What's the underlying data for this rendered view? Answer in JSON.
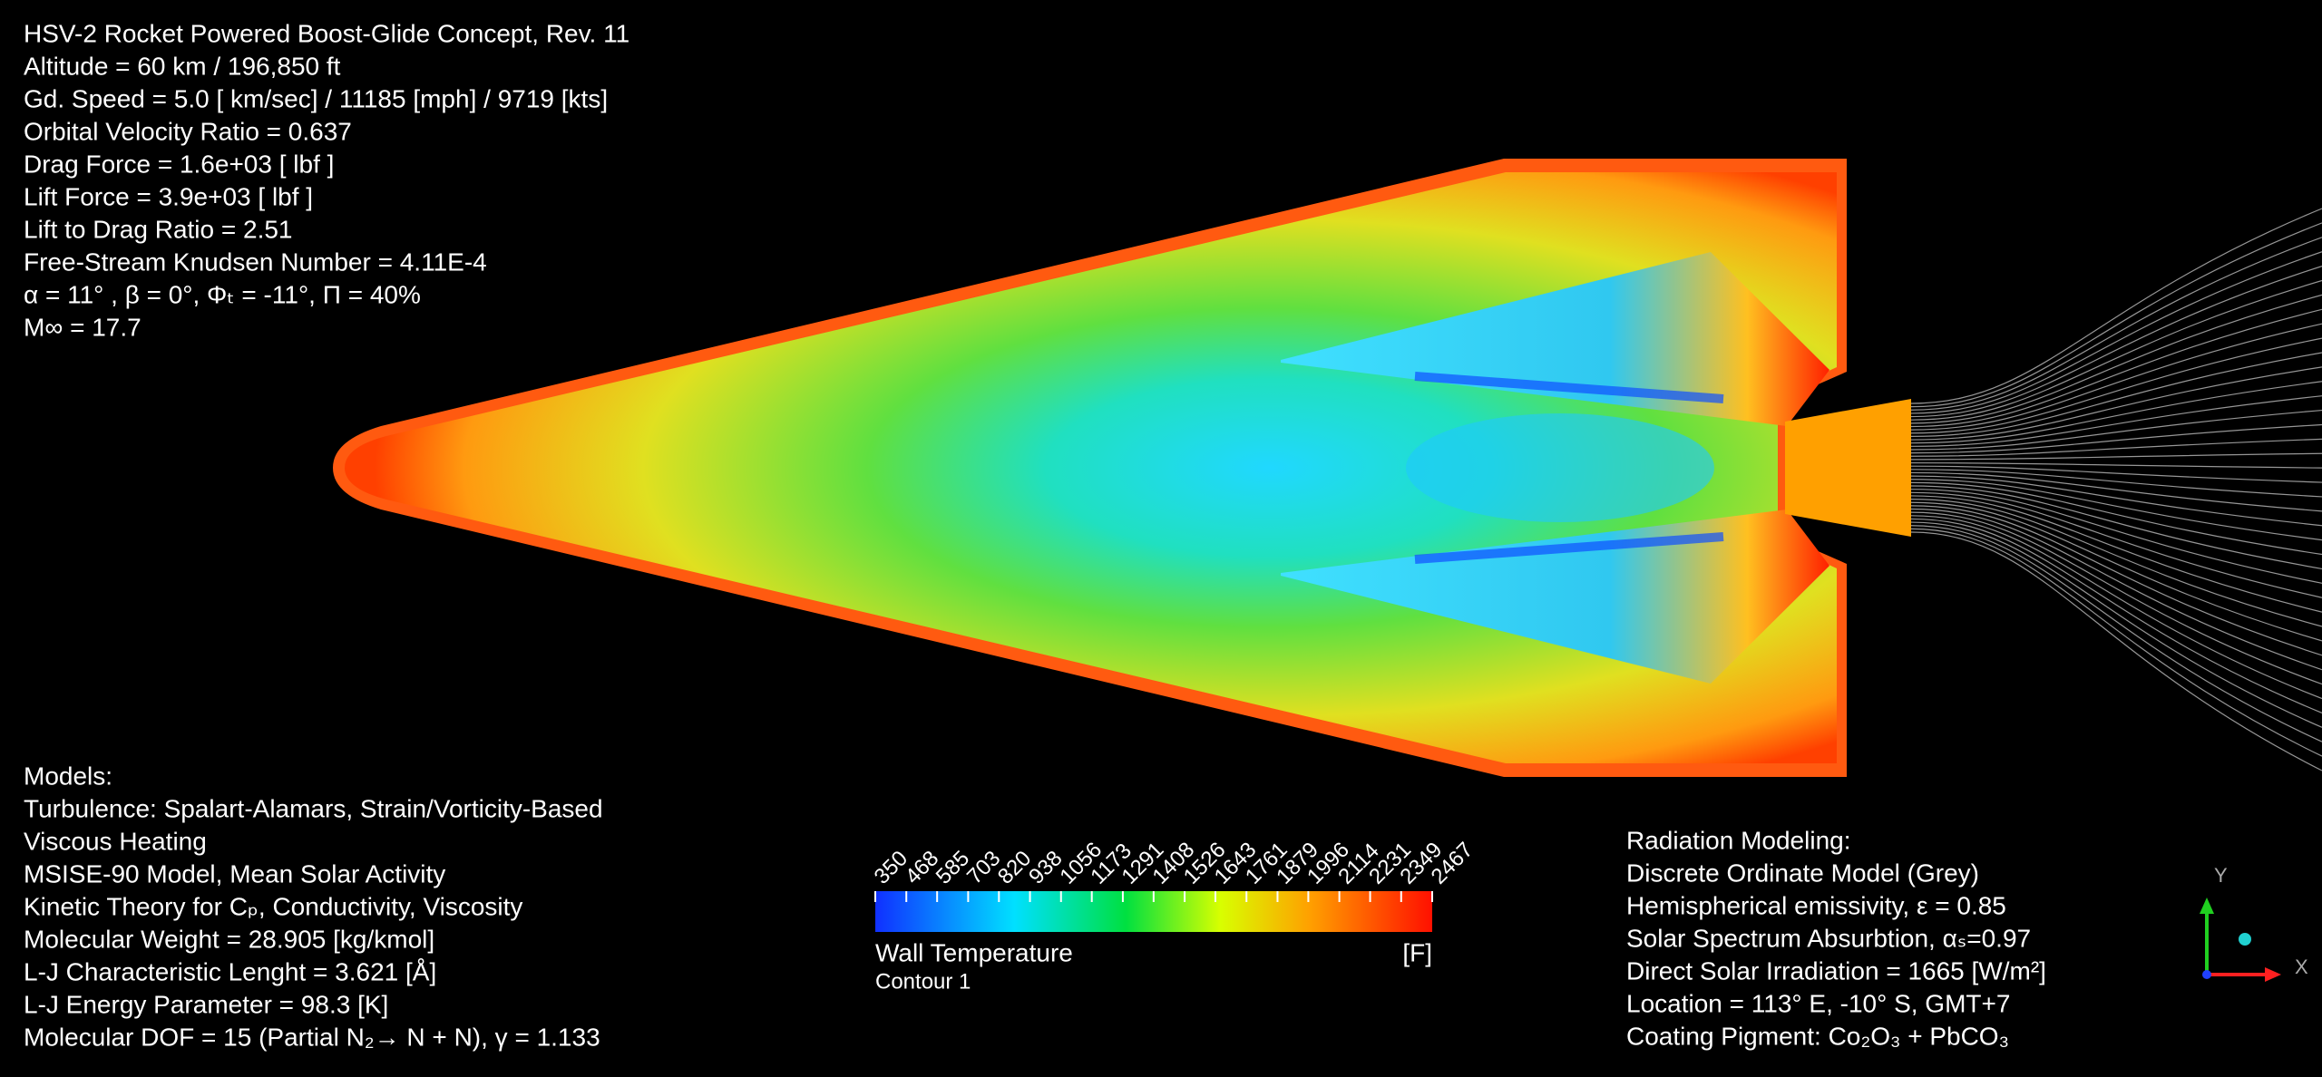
{
  "header": {
    "lines": [
      "HSV-2 Rocket Powered Boost-Glide Concept, Rev. 11",
      "Altitude = 60 km / 196,850 ft",
      "Gd. Speed = 5.0 [ km/sec] / 11185 [mph] / 9719 [kts]",
      "Orbital Velocity Ratio = 0.637",
      "Drag Force = 1.6e+03 [ lbf ]",
      "Lift Force = 3.9e+03 [ lbf ]",
      "Lift to Drag Ratio = 2.51",
      "Free-Stream Knudsen Number = 4.11E-4",
      "α = 11° , β = 0°, Φₜ = -11°, Π = 40%",
      "M∞ = 17.7"
    ]
  },
  "models": {
    "lines": [
      "Models:",
      "Turbulence: Spalart-Alamars, Strain/Vorticity-Based",
      "Viscous Heating",
      "MSISE-90 Model, Mean Solar Activity",
      "Kinetic Theory for Cₚ, Conductivity, Viscosity",
      "Molecular Weight = 28.905 [kg/kmol]",
      "L-J Characteristic Lenght = 3.621 [Å]",
      "L-J Energy Parameter = 98.3 [K]",
      "Molecular DOF = 15 (Partial N₂→ N + N), γ = 1.133"
    ]
  },
  "radiation": {
    "lines": [
      "Radiation Modeling:",
      "Discrete Ordinate Model (Grey)",
      "Hemispherical emissivity, ε = 0.85",
      "Solar Spectrum Absurbtion,  αₛ=0.97",
      "Direct Solar Irradiation = 1665 [W/m²]",
      "Location = 113° E, -10° S, GMT+7",
      "Coating Pigment: Co₂O₃ + PbCO₃"
    ]
  },
  "legend": {
    "title": "Wall Temperature",
    "unit": "[F]",
    "subtitle": "Contour 1",
    "ticks": [
      350,
      468,
      585,
      703,
      820,
      938,
      1056,
      1173,
      1291,
      1408,
      1526,
      1643,
      1761,
      1879,
      1996,
      2114,
      2231,
      2349,
      2467
    ]
  },
  "triad": {
    "x": "X",
    "y": "Y"
  }
}
